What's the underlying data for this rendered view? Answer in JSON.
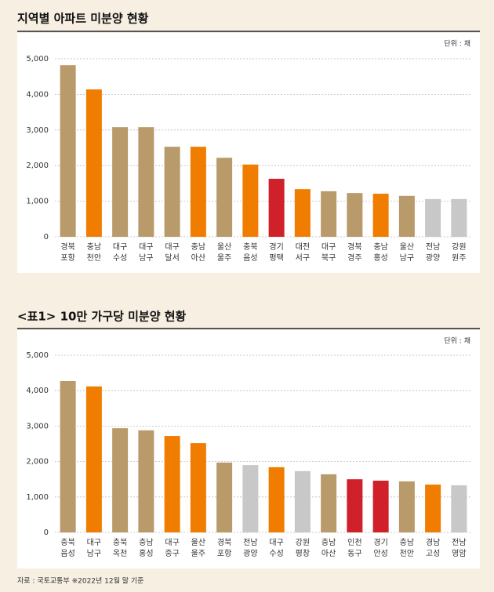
{
  "chart_data": [
    {
      "type": "bar",
      "title": "지역별 아파트 미분양 현황",
      "unit": "단위 : 채",
      "categories": [
        [
          "경북",
          "포항"
        ],
        [
          "충남",
          "천안"
        ],
        [
          "대구",
          "수성"
        ],
        [
          "대구",
          "남구"
        ],
        [
          "대구",
          "달서"
        ],
        [
          "충남",
          "아산"
        ],
        [
          "울산",
          "울주"
        ],
        [
          "충북",
          "음성"
        ],
        [
          "경기",
          "평택"
        ],
        [
          "대전",
          "서구"
        ],
        [
          "대구",
          "북구"
        ],
        [
          "경북",
          "경주"
        ],
        [
          "충남",
          "홍성"
        ],
        [
          "울산",
          "남구"
        ],
        [
          "전남",
          "광양"
        ],
        [
          "강원",
          "원주"
        ]
      ],
      "values": [
        4820,
        4140,
        3080,
        3080,
        2530,
        2530,
        2220,
        2030,
        1630,
        1340,
        1280,
        1230,
        1210,
        1150,
        1060,
        1060
      ],
      "colors": [
        "#b99a6b",
        "#f07d00",
        "#b99a6b",
        "#b99a6b",
        "#b99a6b",
        "#f07d00",
        "#b99a6b",
        "#f07d00",
        "#d0202a",
        "#f07d00",
        "#b99a6b",
        "#b99a6b",
        "#f07d00",
        "#b99a6b",
        "#c8c8c8",
        "#c8c8c8"
      ],
      "ylim": [
        0,
        5000
      ],
      "yticks": [
        0,
        {
          "value": 1000,
          "label": "1,000"
        },
        {
          "value": 2000,
          "label": "2,000"
        },
        {
          "value": 3000,
          "label": "3,000"
        },
        {
          "value": 4000,
          "label": "4,000"
        },
        {
          "value": 5000,
          "label": "5,000"
        }
      ],
      "grid": true
    },
    {
      "type": "bar",
      "title": "<표1> 10만 가구당 미분양 현황",
      "unit": "단위 : 채",
      "categories": [
        [
          "충북",
          "음성"
        ],
        [
          "대구",
          "남구"
        ],
        [
          "충북",
          "옥천"
        ],
        [
          "충남",
          "홍성"
        ],
        [
          "대구",
          "중구"
        ],
        [
          "울산",
          "울주"
        ],
        [
          "경북",
          "포항"
        ],
        [
          "전남",
          "광양"
        ],
        [
          "대구",
          "수성"
        ],
        [
          "강원",
          "평창"
        ],
        [
          "충남",
          "아산"
        ],
        [
          "인천",
          "동구"
        ],
        [
          "경기",
          "안성"
        ],
        [
          "충남",
          "천안"
        ],
        [
          "경남",
          "고성"
        ],
        [
          "전남",
          "영암"
        ]
      ],
      "values": [
        4270,
        4120,
        2940,
        2880,
        2720,
        2520,
        1970,
        1900,
        1840,
        1730,
        1640,
        1500,
        1460,
        1440,
        1350,
        1330
      ],
      "colors": [
        "#b99a6b",
        "#f07d00",
        "#b99a6b",
        "#b99a6b",
        "#f07d00",
        "#f07d00",
        "#b99a6b",
        "#c8c8c8",
        "#f07d00",
        "#c8c8c8",
        "#b99a6b",
        "#d0202a",
        "#d0202a",
        "#b99a6b",
        "#f07d00",
        "#c8c8c8"
      ],
      "ylim": [
        0,
        5000
      ],
      "yticks": [
        0,
        {
          "value": 1000,
          "label": "1,000"
        },
        {
          "value": 2000,
          "label": "2,000"
        },
        {
          "value": 3000,
          "label": "3,000"
        },
        {
          "value": 4000,
          "label": "4,000"
        },
        {
          "value": 5000,
          "label": "5,000"
        }
      ],
      "grid": true
    }
  ],
  "source": "자료 : 국토교통부 ※2022년 12월 말 기준"
}
